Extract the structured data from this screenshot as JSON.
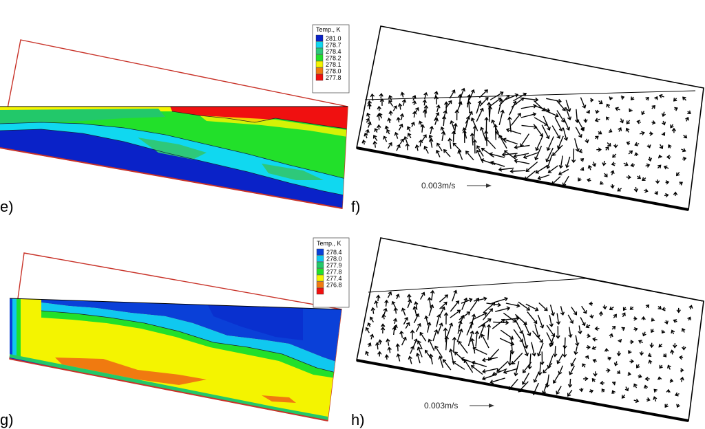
{
  "panels": [
    {
      "id": "e",
      "label": "e)",
      "kind": "temperature-contour",
      "legend": {
        "title": "Temp., K",
        "entries": [
          {
            "value": "281.0",
            "color": "#0a22c8"
          },
          {
            "value": "278.7",
            "color": "#10d8f0"
          },
          {
            "value": "278.4",
            "color": "#2ec87a"
          },
          {
            "value": "278.2",
            "color": "#22e02a"
          },
          {
            "value": "278.1",
            "color": "#f4f400"
          },
          {
            "value": "278.0",
            "color": "#f07a10"
          },
          {
            "value": "277.8",
            "color": "#f01010"
          }
        ]
      }
    },
    {
      "id": "f",
      "label": "f)",
      "kind": "velocity-vectors",
      "scale_label": "0.003m/s"
    },
    {
      "id": "g",
      "label": "g)",
      "kind": "temperature-contour",
      "legend": {
        "title": "Temp., K",
        "entries": [
          {
            "value": "278.4",
            "color": "#0a40d8"
          },
          {
            "value": "278.0",
            "color": "#10c8f0"
          },
          {
            "value": "277.9",
            "color": "#22c86a"
          },
          {
            "value": "277.8",
            "color": "#22e02a"
          },
          {
            "value": "277.4",
            "color": "#f4f400"
          },
          {
            "value": "276.8",
            "color": "#f07a10"
          },
          {
            "value": "",
            "color": "#f01010"
          }
        ]
      }
    },
    {
      "id": "h",
      "label": "h)",
      "kind": "velocity-vectors",
      "scale_label": "0.003m/s"
    }
  ]
}
